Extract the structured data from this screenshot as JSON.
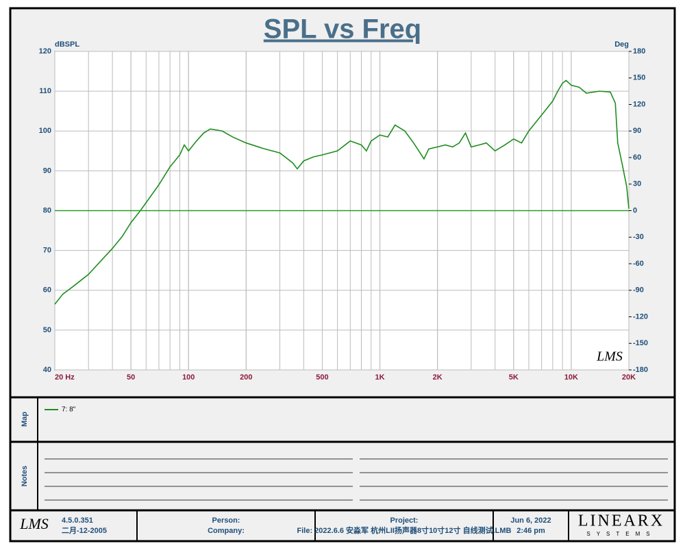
{
  "chart_data": {
    "type": "line",
    "title": "SPL vs Freq",
    "y_label": "dBSPL",
    "y2_label": "Deg",
    "watermark": "LMS",
    "xscale": "log",
    "grid": true,
    "xlim": [
      20,
      20000
    ],
    "xticks": [
      {
        "value": 20,
        "label": "20  Hz"
      },
      50,
      100,
      200,
      500,
      {
        "value": 1000,
        "label": "1K"
      },
      {
        "value": 2000,
        "label": "2K"
      },
      {
        "value": 5000,
        "label": "5K"
      },
      {
        "value": 10000,
        "label": "10K"
      },
      {
        "value": 20000,
        "label": "20K"
      }
    ],
    "ylim": [
      40,
      120
    ],
    "yticks": [
      40,
      50,
      60,
      70,
      80,
      90,
      100,
      110,
      120
    ],
    "y2lim": [
      -180,
      180
    ],
    "y2ticks": [
      -180,
      -150,
      -120,
      -90,
      -60,
      -30,
      0,
      30,
      60,
      90,
      120,
      150,
      180
    ],
    "series": [
      {
        "name": "7: 8\"",
        "color": "#1e8c1e",
        "x": [
          20,
          22,
          25,
          30,
          35,
          40,
          45,
          50,
          55,
          60,
          70,
          80,
          90,
          95,
          100,
          110,
          120,
          130,
          150,
          170,
          200,
          250,
          300,
          350,
          370,
          400,
          450,
          500,
          600,
          700,
          800,
          850,
          900,
          1000,
          1100,
          1200,
          1350,
          1500,
          1700,
          1800,
          2000,
          2200,
          2400,
          2600,
          2800,
          3000,
          3300,
          3600,
          4000,
          4500,
          5000,
          5500,
          6000,
          7000,
          8000,
          8500,
          9000,
          9400,
          10000,
          11000,
          12000,
          14000,
          16000,
          17000,
          17500,
          18500,
          19500,
          20000
        ],
        "values": [
          56.5,
          59,
          61,
          64,
          67.5,
          70.5,
          73.5,
          77,
          79.5,
          82,
          86.5,
          91,
          94,
          96.5,
          95,
          97.5,
          99.5,
          100.5,
          100,
          98.5,
          97,
          95.5,
          94.5,
          92,
          90.5,
          92.5,
          93.5,
          94,
          95,
          97.5,
          96.5,
          95,
          97.5,
          99,
          98.5,
          101.5,
          100,
          97,
          93,
          95.5,
          96,
          96.5,
          96,
          97,
          99.5,
          96,
          96.5,
          97,
          95,
          96.5,
          98,
          97,
          100,
          104,
          107.5,
          110,
          112,
          112.7,
          111.5,
          111,
          109.5,
          110,
          109.8,
          107,
          97,
          91.5,
          86,
          80.5
        ]
      },
      {
        "color": "#22a022",
        "axis": "y2",
        "x": [
          20,
          20000
        ],
        "values": [
          0,
          0
        ]
      }
    ]
  },
  "panels": {
    "map": "Map",
    "notes": "Notes"
  },
  "footer": {
    "logo": "LMS",
    "version": "4.5.0.351",
    "date": "二月-12-2005",
    "person": "Person:",
    "company": "Company:",
    "project": "Project:",
    "file": "File: 2022.6.6 安淼军 杭州LII扬声器8寸10寸12寸 自线测试.LMB",
    "run_date": "Jun  6, 2022",
    "run_time": "2:46 pm",
    "brand": "LINEARX",
    "brand_sub": "SYSTEMS"
  }
}
